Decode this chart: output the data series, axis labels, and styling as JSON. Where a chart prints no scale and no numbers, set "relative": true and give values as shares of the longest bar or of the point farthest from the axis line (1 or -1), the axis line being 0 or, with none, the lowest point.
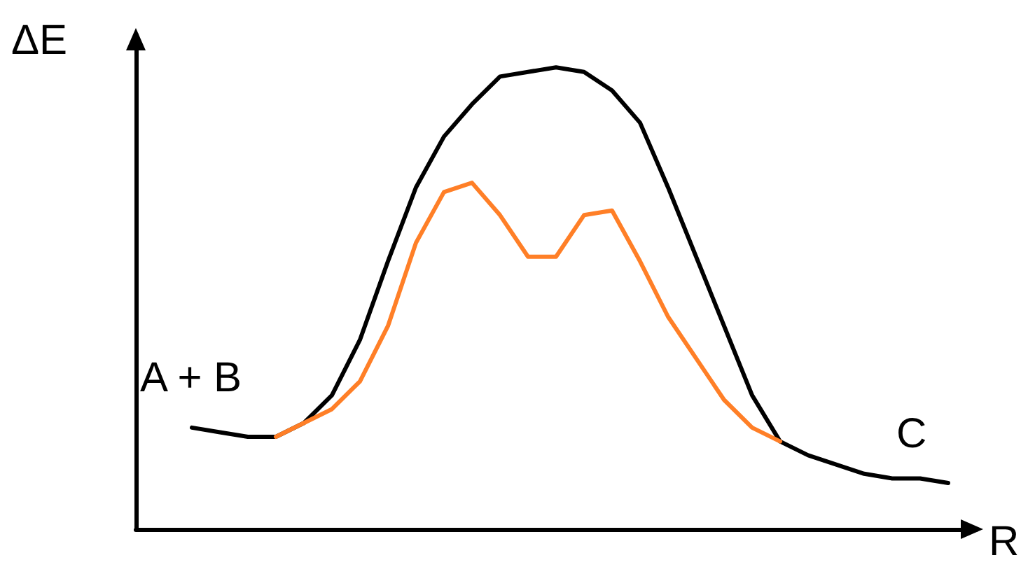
{
  "chart_data": {
    "type": "line",
    "relative": true,
    "xlabel": "R",
    "ylabel": "ΔE",
    "annotations": [
      "A + B",
      "C"
    ],
    "grid": false,
    "marker": "none",
    "line_style": "solid",
    "categories": [
      null,
      null,
      null,
      null,
      null,
      null,
      null,
      null,
      null,
      null,
      null,
      null,
      null,
      null,
      null,
      null,
      null,
      null,
      null,
      null,
      null,
      null,
      null,
      null,
      null,
      null,
      null,
      null,
      null,
      null,
      null
    ],
    "series": [
      {
        "color": "#000000",
        "values": [
          null,
          null,
          0.22,
          0.21,
          0.2,
          0.2,
          0.23,
          0.29,
          0.41,
          0.58,
          0.74,
          0.85,
          0.92,
          0.98,
          0.99,
          1.0,
          0.99,
          0.95,
          0.88,
          0.74,
          0.59,
          0.44,
          0.29,
          0.19,
          0.16,
          0.14,
          0.12,
          0.11,
          0.11,
          0.1,
          null
        ]
      },
      {
        "color": "#ff7f27",
        "values": [
          null,
          null,
          null,
          null,
          null,
          0.2,
          0.23,
          0.26,
          0.32,
          0.44,
          0.62,
          0.73,
          0.75,
          0.68,
          0.59,
          0.59,
          0.68,
          0.69,
          0.58,
          0.46,
          0.37,
          0.28,
          0.22,
          0.19,
          null,
          null,
          null,
          null,
          null,
          null,
          null
        ]
      }
    ]
  }
}
